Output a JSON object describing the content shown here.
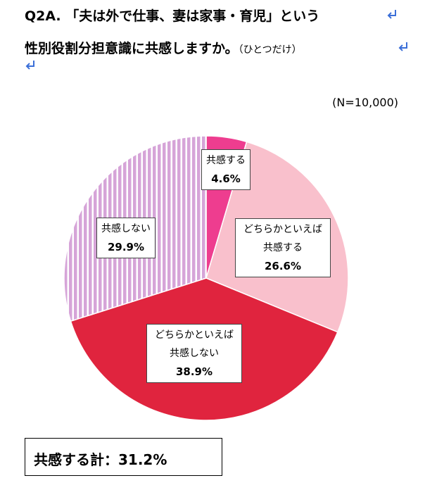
{
  "chart_data": {
    "type": "pie",
    "title": [
      "Q2A. 「夫は外で仕事、妻は家事・育児」という",
      "性別役割分担意識に共感しますか。"
    ],
    "subtitle": "（ひとつだけ）",
    "note": "(N=10,000)",
    "categories": [
      "共感する",
      "どちらかといえば共感する",
      "どちらかといえば共感しない",
      "共感しない"
    ],
    "values": [
      4.6,
      26.6,
      38.9,
      29.9
    ],
    "value_labels": [
      "4.6%",
      "26.6%",
      "38.9%",
      "29.9%"
    ],
    "colors": [
      "#ee3d8f",
      "#f9c0cc",
      "#e0243e",
      "#d6a4d8"
    ],
    "striped": [
      false,
      false,
      false,
      true
    ],
    "start_angle": 0,
    "direction": "clockwise"
  },
  "summary": "共感する計：31.2%"
}
